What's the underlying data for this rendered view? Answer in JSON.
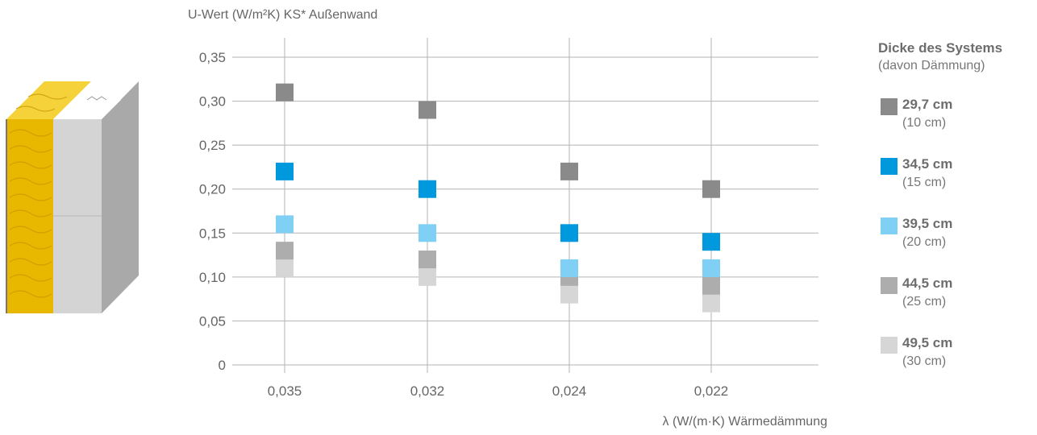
{
  "colors": {
    "series": [
      "#8a8a8a",
      "#0099dd",
      "#80d0f5",
      "#adadad",
      "#d6d6d6"
    ],
    "grid": "#b3b3b3",
    "insulation": "#e8b800",
    "wall_front": "#d4d4d4",
    "wall_side": "#a8a8a8"
  },
  "legend": {
    "title": "Dicke des Systems",
    "subtitle": "(davon Dämmung)",
    "items": [
      {
        "label": "29,7 cm",
        "detail": "(10 cm)"
      },
      {
        "label": "34,5 cm",
        "detail": "(15 cm)"
      },
      {
        "label": "39,5 cm",
        "detail": "(20 cm)"
      },
      {
        "label": "44,5 cm",
        "detail": "(25 cm)"
      },
      {
        "label": "49,5 cm",
        "detail": "(30 cm)"
      }
    ]
  },
  "chart_data": {
    "type": "scatter",
    "title": "",
    "ylabel": "U-Wert (W/m²K) KS* Außenwand",
    "xlabel": "λ (W/(m·K) Wärmedämmung",
    "categories": [
      "0,035",
      "0,032",
      "0,024",
      "0,022"
    ],
    "ylim": [
      0,
      0.35
    ],
    "yticks": [
      {
        "value": 0,
        "label": "0"
      },
      {
        "value": 0.05,
        "label": "0,05"
      },
      {
        "value": 0.1,
        "label": "0,10"
      },
      {
        "value": 0.15,
        "label": "0,15"
      },
      {
        "value": 0.2,
        "label": "0,20"
      },
      {
        "value": 0.25,
        "label": "0,25"
      },
      {
        "value": 0.3,
        "label": "0,30"
      },
      {
        "value": 0.35,
        "label": "0,35"
      }
    ],
    "grid": true,
    "legend_position": "right",
    "series": [
      {
        "name": "29,7 cm",
        "values": [
          0.31,
          0.29,
          0.22,
          0.2
        ]
      },
      {
        "name": "34,5 cm",
        "values": [
          0.22,
          0.2,
          0.15,
          0.14
        ]
      },
      {
        "name": "39,5 cm",
        "values": [
          0.16,
          0.15,
          0.11,
          0.11
        ]
      },
      {
        "name": "44,5 cm",
        "values": [
          0.13,
          0.12,
          0.1,
          0.09
        ]
      },
      {
        "name": "49,5 cm",
        "values": [
          0.11,
          0.1,
          0.08,
          0.07
        ]
      }
    ]
  }
}
